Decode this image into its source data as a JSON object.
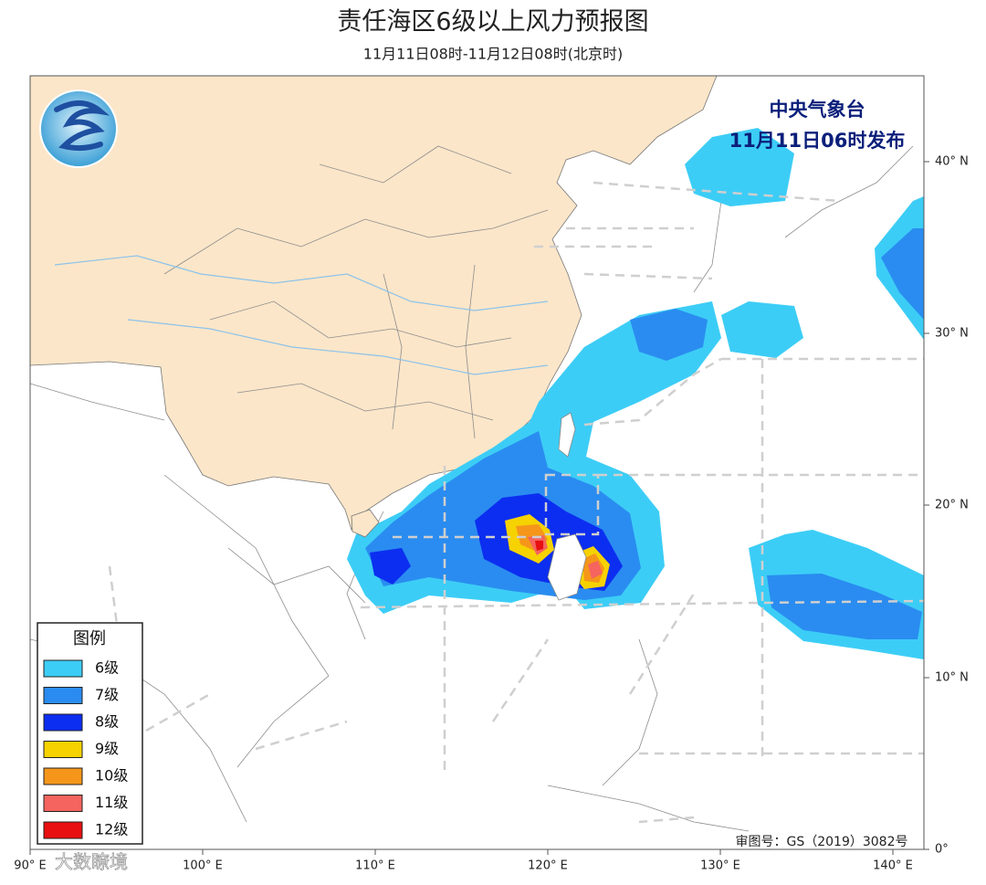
{
  "header": {
    "title": "责任海区6级以上风力预报图",
    "subtitle": "11月11日08时-11月12日08时(北京时)"
  },
  "issuer": {
    "agency": "中央气象台",
    "issued": "11月11日06时发布"
  },
  "legend": {
    "title": "图例",
    "items": [
      {
        "label": "6级",
        "color": "#3ccdf6"
      },
      {
        "label": "7级",
        "color": "#2a8cf0"
      },
      {
        "label": "8级",
        "color": "#0c2ef0"
      },
      {
        "label": "9级",
        "color": "#f5d200"
      },
      {
        "label": "10级",
        "color": "#f5961a"
      },
      {
        "label": "11级",
        "color": "#f5645e"
      },
      {
        "label": "12级",
        "color": "#e81010"
      }
    ]
  },
  "axes": {
    "lat_labels": [
      "40° N",
      "30° N",
      "20° N",
      "10° N",
      "0°"
    ],
    "lon_labels": [
      "90° E",
      "100° E",
      "110° E",
      "120° E",
      "130° E",
      "140° E"
    ]
  },
  "footer": {
    "approval": "审图号：GS（2019）3082号",
    "watermark": "大数瞭境"
  }
}
